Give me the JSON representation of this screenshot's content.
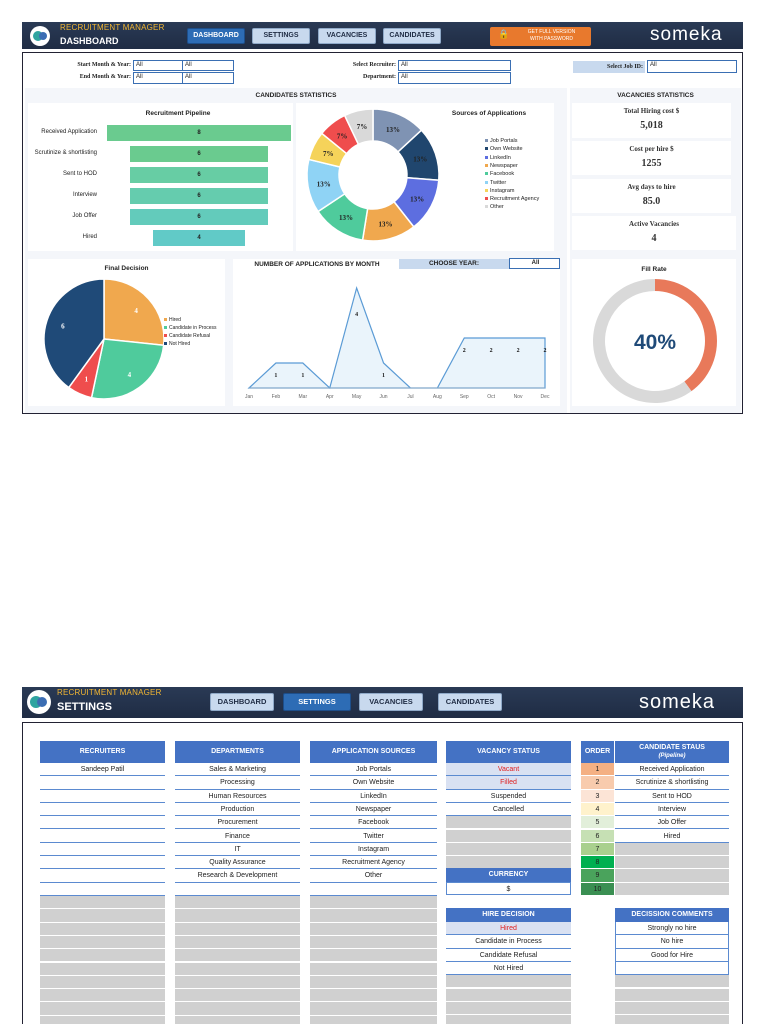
{
  "dashboard": {
    "header": {
      "subtitle": "RECRUITMENT MANAGER",
      "title": "DASHBOARD",
      "brand": "someka",
      "nav": [
        "DASHBOARD",
        "SETTINGS",
        "VACANCIES",
        "CANDIDATES"
      ],
      "promo_line1": "GET FULL VERSION",
      "promo_line2": "WITH PASSWORD"
    },
    "filters": {
      "start_label": "Start Month & Year:",
      "end_label": "End Month & Year:",
      "start_v1": "All",
      "start_v2": "All",
      "end_v1": "All",
      "end_v2": "All",
      "recruiter_label": "Select Recruiter:",
      "recruiter": "All",
      "department_label": "Department:",
      "department": "All",
      "jobid_label": "Select Job ID:",
      "jobid": "All"
    },
    "candidates_title": "CANDIDATES STATISTICS",
    "vacancies_title": "VACANCIES STATISTICS",
    "pipeline": {
      "title": "Recruitment Pipeline",
      "stages": [
        {
          "label": "Received Application",
          "value": 8,
          "color": "#6acb8f"
        },
        {
          "label": "Scrutinize & shortlisting",
          "value": 6,
          "color": "#6acb8f"
        },
        {
          "label": "Sent to HOD",
          "value": 6,
          "color": "#67cda4"
        },
        {
          "label": "Interview",
          "value": 6,
          "color": "#65ccae"
        },
        {
          "label": "Job Offer",
          "value": 6,
          "color": "#63cbbb"
        },
        {
          "label": "Hired",
          "value": 4,
          "color": "#61cac7"
        }
      ]
    },
    "sources": {
      "title": "Sources of Applications",
      "slices": [
        {
          "name": "Job Portals",
          "value": 13,
          "label": "13%",
          "color": "#7f93b3"
        },
        {
          "name": "Own Website",
          "value": 13,
          "label": "13%",
          "color": "#20466e"
        },
        {
          "name": "LinkedIn",
          "value": 13,
          "label": "13%",
          "color": "#5d6ee0"
        },
        {
          "name": "Newspaper",
          "value": 13,
          "label": "13%",
          "color": "#f0a84e"
        },
        {
          "name": "Facebook",
          "value": 13,
          "label": "13%",
          "color": "#4fcb9c"
        },
        {
          "name": "Twitter",
          "value": 13,
          "label": "13%",
          "color": "#8fd3f5"
        },
        {
          "name": "Instagram",
          "value": 7,
          "label": "7%",
          "color": "#f5d35a"
        },
        {
          "name": "Recruitment Agency",
          "value": 7,
          "label": "7%",
          "color": "#ef4d4d"
        },
        {
          "name": "Other",
          "value": 7,
          "label": "7%",
          "color": "#d9d9d9"
        }
      ]
    },
    "decision": {
      "title": "Final Decision",
      "slices": [
        {
          "name": "Hired",
          "value": 4,
          "color": "#f0a84e"
        },
        {
          "name": "Candidate in Process",
          "value": 4,
          "color": "#4fcb9c"
        },
        {
          "name": "Candidate Refusal",
          "value": 1,
          "color": "#ef4d4d"
        },
        {
          "name": "Not Hired",
          "value": 6,
          "color": "#1f4a78"
        }
      ]
    },
    "apps": {
      "title": "NUMBER OF APPLICATIONS BY MONTH",
      "choose_label": "CHOOSE YEAR:",
      "year": "All",
      "months": [
        "Jan",
        "Feb",
        "Mar",
        "Apr",
        "May",
        "Jun",
        "Jul",
        "Aug",
        "Sep",
        "Oct",
        "Nov",
        "Dec"
      ],
      "values": [
        0,
        1,
        1,
        0,
        4,
        1,
        0,
        0,
        2,
        2,
        2,
        2
      ]
    },
    "stats": [
      {
        "title": "Total Hiring cost $",
        "value": "5,018"
      },
      {
        "title": "Cost per hire $",
        "value": "1255"
      },
      {
        "title": "Avg days to hire",
        "value": "85.0"
      },
      {
        "title": "Active Vacancies",
        "value": "4"
      }
    ],
    "fill": {
      "title": "Fill Rate",
      "value": 0.4,
      "label": "40%"
    }
  },
  "chart_data": [
    {
      "type": "bar",
      "title": "Recruitment Pipeline",
      "categories": [
        "Received Application",
        "Scrutinize & shortlisting",
        "Sent to HOD",
        "Interview",
        "Job Offer",
        "Hired"
      ],
      "values": [
        8,
        6,
        6,
        6,
        6,
        4
      ]
    },
    {
      "type": "pie",
      "title": "Sources of Applications",
      "categories": [
        "Job Portals",
        "Own Website",
        "LinkedIn",
        "Newspaper",
        "Facebook",
        "Twitter",
        "Instagram",
        "Recruitment Agency",
        "Other"
      ],
      "values": [
        13,
        13,
        13,
        13,
        13,
        13,
        7,
        7,
        7
      ]
    },
    {
      "type": "pie",
      "title": "Final Decision",
      "categories": [
        "Hired",
        "Candidate in Process",
        "Candidate Refusal",
        "Not Hired"
      ],
      "values": [
        4,
        4,
        1,
        6
      ]
    },
    {
      "type": "area",
      "title": "NUMBER OF APPLICATIONS BY MONTH",
      "categories": [
        "Jan",
        "Feb",
        "Mar",
        "Apr",
        "May",
        "Jun",
        "Jul",
        "Aug",
        "Sep",
        "Oct",
        "Nov",
        "Dec"
      ],
      "values": [
        0,
        1,
        1,
        0,
        4,
        1,
        0,
        0,
        2,
        2,
        2,
        2
      ]
    },
    {
      "type": "pie",
      "title": "Fill Rate",
      "values": [
        40,
        60
      ]
    }
  ],
  "settings": {
    "header": {
      "subtitle": "RECRUITMENT MANAGER",
      "title": "SETTINGS",
      "brand": "someka",
      "nav": [
        "DASHBOARD",
        "SETTINGS",
        "VACANCIES",
        "CANDIDATES"
      ]
    },
    "recruiters": {
      "title": "RECRUITERS",
      "items": [
        "Sandeep Patil"
      ]
    },
    "departments": {
      "title": "DEPARTMENTS",
      "items": [
        "Sales & Marketing",
        "Processing",
        "Human Resources",
        "Production",
        "Procurement",
        "Finance",
        "IT",
        "Quality Assurance",
        "Research & Development"
      ]
    },
    "sources": {
      "title": "APPLICATION SOURCES",
      "items": [
        "Job Portals",
        "Own Website",
        "LinkedIn",
        "Newspaper",
        "Facebook",
        "Twitter",
        "Instagram",
        "Recruitment Agency",
        "Other"
      ]
    },
    "vacancy_status": {
      "title": "VACANCY STATUS",
      "items": [
        "Vacant",
        "Filled",
        "Suspended",
        "Cancelled"
      ]
    },
    "currency": {
      "title": "CURRENCY",
      "value": "$"
    },
    "hire_decision": {
      "title": "HIRE DECISION",
      "items": [
        "Hired",
        "Candidate in Process",
        "Candidate Refusal",
        "Not Hired"
      ]
    },
    "order": {
      "title": "ORDER",
      "values": [
        "1",
        "2",
        "3",
        "4",
        "5",
        "6",
        "7",
        "8",
        "9",
        "10"
      ],
      "colors": [
        "#f4b083",
        "#f8cbad",
        "#fce4d6",
        "#fff2cc",
        "#e2efda",
        "#c6e0b4",
        "#a9d08e",
        "#00b050",
        "#4aa35c",
        "#3a8f52"
      ]
    },
    "candidate_status": {
      "title": "CANDIDATE STAUS",
      "subtitle": "(Pipeline)",
      "items": [
        "Received Application",
        "Scrutinize & shortlisting",
        "Sent to HOD",
        "Interview",
        "Job Offer",
        "Hired"
      ]
    },
    "decision_comments": {
      "title": "DECISSION COMMENTS",
      "items": [
        "Strongly no hire",
        "No hire",
        "Good for Hire"
      ]
    }
  }
}
